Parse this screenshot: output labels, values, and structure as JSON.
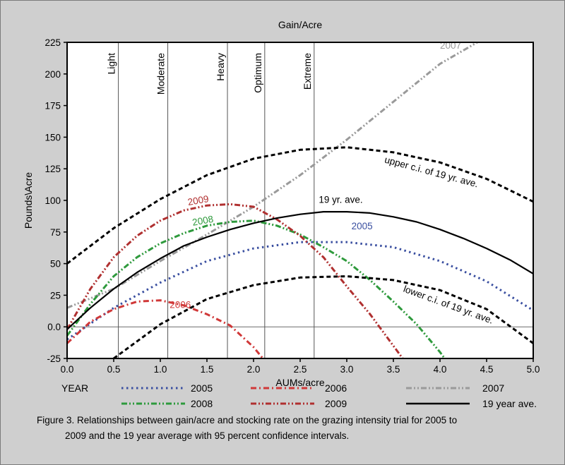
{
  "chart_data": {
    "type": "line",
    "title": "Gain/Acre",
    "xlabel": "AUMs/acre",
    "ylabel": "Pounds\\Acre",
    "xlim": [
      0,
      5
    ],
    "ylim": [
      -25,
      225
    ],
    "x_ticks": [
      "0.0",
      "0.5",
      "1.0",
      "1.5",
      "2.0",
      "2.5",
      "3.0",
      "3.5",
      "4.0",
      "4.5",
      "5.0"
    ],
    "y_ticks": [
      "-25",
      "0.0",
      "25",
      "50",
      "75",
      "100",
      "125",
      "150",
      "175",
      "200",
      "225"
    ],
    "grid": false,
    "vertical_markers": [
      {
        "label": "Light",
        "x": 0.55
      },
      {
        "label": "Moderate",
        "x": 1.08
      },
      {
        "label": "Heavy",
        "x": 1.72
      },
      {
        "label": "Optimum",
        "x": 2.12
      },
      {
        "label": "Extreme",
        "x": 2.65
      }
    ],
    "series": [
      {
        "name": "2005",
        "color": "#3a4fa0",
        "style": "dot",
        "label": "2005",
        "x": [
          0,
          0.5,
          1,
          1.5,
          2,
          2.5,
          3,
          3.5,
          4,
          4.5,
          5
        ],
        "y": [
          -10,
          15,
          35,
          52,
          62,
          67,
          67,
          63,
          52,
          36,
          13
        ]
      },
      {
        "name": "2006",
        "color": "#d03838",
        "style": "dashdot",
        "label": "2006",
        "x": [
          0,
          0.25,
          0.5,
          0.75,
          1,
          1.25,
          1.5,
          1.75,
          2,
          2.1
        ],
        "y": [
          -13,
          4,
          14,
          20,
          21,
          17,
          10,
          1,
          -16,
          -25
        ]
      },
      {
        "name": "2007",
        "color": "#9a9a9a",
        "style": "dashdotdot",
        "label": "2007",
        "x": [
          0,
          0.5,
          1,
          1.5,
          2,
          2.5,
          3,
          3.5,
          4,
          4.4
        ],
        "y": [
          15,
          30,
          52,
          73,
          95,
          120,
          148,
          178,
          208,
          225
        ]
      },
      {
        "name": "2008",
        "color": "#2e9a3c",
        "style": "dashdotdot",
        "label": "2008",
        "x": [
          0,
          0.25,
          0.5,
          0.75,
          1,
          1.25,
          1.5,
          1.75,
          2,
          2.25,
          2.5,
          2.75,
          3,
          3.25,
          3.5,
          3.75,
          4,
          4.05
        ],
        "y": [
          -7,
          18,
          40,
          55,
          66,
          74,
          80,
          83,
          84,
          80,
          73,
          63,
          52,
          37,
          20,
          2,
          -20,
          -25
        ]
      },
      {
        "name": "2009",
        "color": "#b03030",
        "style": "dashdotdot",
        "label": "2009",
        "x": [
          0,
          0.25,
          0.5,
          0.75,
          1,
          1.25,
          1.5,
          1.75,
          2,
          2.25,
          2.5,
          2.75,
          3,
          3.25,
          3.5,
          3.6
        ],
        "y": [
          -2,
          30,
          55,
          72,
          84,
          92,
          96,
          97,
          95,
          85,
          72,
          55,
          32,
          10,
          -15,
          -25
        ]
      },
      {
        "name": "19 year ave.",
        "color": "#000000",
        "style": "solid",
        "label": "19 yr. ave.",
        "x": [
          0,
          0.25,
          0.5,
          0.75,
          1,
          1.25,
          1.5,
          1.75,
          2,
          2.25,
          2.5,
          2.75,
          3,
          3.25,
          3.5,
          3.75,
          4,
          4.25,
          4.5,
          4.75,
          5
        ],
        "y": [
          -2,
          15,
          30,
          43,
          54,
          64,
          71,
          77,
          82,
          86,
          89,
          91,
          91,
          90,
          87,
          83,
          77,
          70,
          62,
          53,
          42
        ]
      },
      {
        "name": "upper c.i. of 19 yr. ave.",
        "color": "#000000",
        "style": "dash",
        "label": "upper c.i. of 19 yr. ave.",
        "x": [
          0,
          0.5,
          1,
          1.5,
          2,
          2.5,
          3,
          3.5,
          4,
          4.5,
          5
        ],
        "y": [
          50,
          78,
          101,
          120,
          133,
          140,
          142,
          138,
          130,
          117,
          99
        ]
      },
      {
        "name": "lower c.i. of 19 yr. ave.",
        "color": "#000000",
        "style": "dash",
        "label": "lower c.i. of 19 yr. ave.",
        "x": [
          0.5,
          1,
          1.5,
          2,
          2.5,
          3,
          3.5,
          4,
          4.5,
          5
        ],
        "y": [
          -25,
          2,
          22,
          33,
          39,
          40,
          37,
          29,
          14,
          -13
        ]
      }
    ],
    "legend": {
      "placement": "bottom",
      "heading": "YEAR",
      "entries": [
        "2005",
        "2006",
        "2007",
        "2008",
        "2009",
        "19 year ave."
      ]
    }
  },
  "caption": {
    "line1": "Figure 3. Relationships between gain/acre and stocking rate on the grazing intensity trial for 2005 to",
    "line2": "2009 and the 19 year average with 95 percent confidence intervals."
  }
}
